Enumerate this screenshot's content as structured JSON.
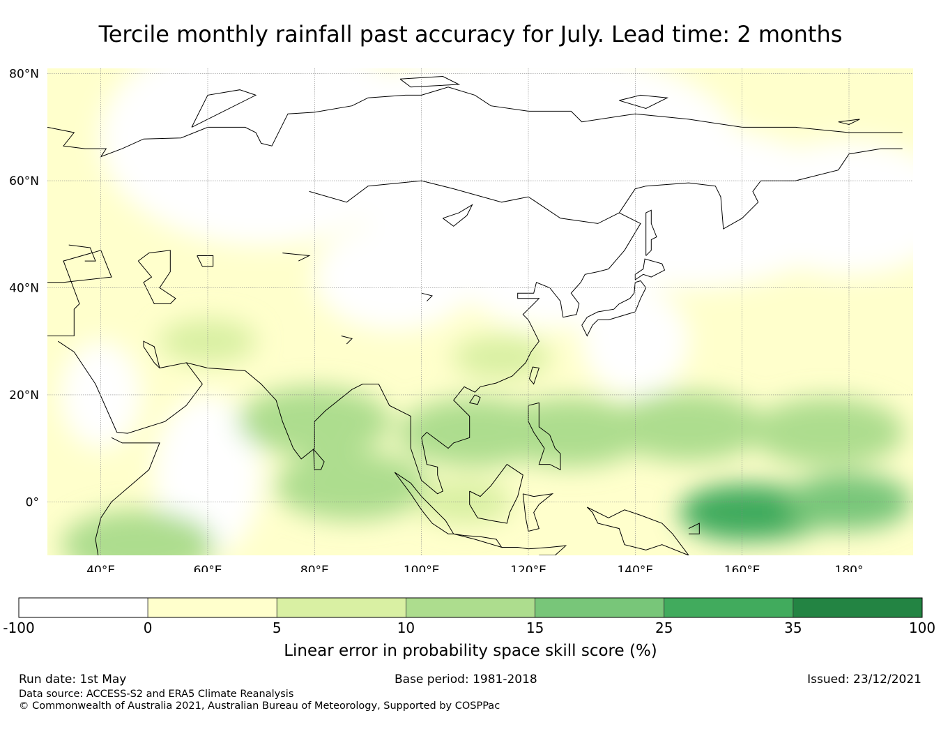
{
  "title": "Tercile monthly rainfall past accuracy for July. Lead time: 2 months",
  "map": {
    "lon_range": [
      30,
      192
    ],
    "lat_range": [
      -10,
      81
    ],
    "lat_ticks": [
      {
        "value": 80,
        "label": "80°N"
      },
      {
        "value": 60,
        "label": "60°N"
      },
      {
        "value": 40,
        "label": "40°N"
      },
      {
        "value": 20,
        "label": "20°N"
      },
      {
        "value": 0,
        "label": "0°"
      }
    ],
    "lon_ticks": [
      {
        "value": 40,
        "label": "40°E"
      },
      {
        "value": 60,
        "label": "60°E"
      },
      {
        "value": 80,
        "label": "80°E"
      },
      {
        "value": 100,
        "label": "100°E"
      },
      {
        "value": 120,
        "label": "120°E"
      },
      {
        "value": 140,
        "label": "140°E"
      },
      {
        "value": 160,
        "label": "160°E"
      },
      {
        "value": 180,
        "label": "180°"
      }
    ],
    "high_skill_regions": [
      {
        "lon": 80,
        "lat": 15,
        "level": 3
      },
      {
        "lon": 87,
        "lat": 3,
        "level": 3
      },
      {
        "lon": 110,
        "lat": 13,
        "level": 3
      },
      {
        "lon": 128,
        "lat": 13,
        "level": 3
      },
      {
        "lon": 150,
        "lat": 14,
        "level": 3
      },
      {
        "lon": 176,
        "lat": 13,
        "level": 3
      },
      {
        "lon": 165,
        "lat": -2,
        "level": 4
      },
      {
        "lon": 160,
        "lat": -2,
        "level": 5
      },
      {
        "lon": 180,
        "lat": 0,
        "level": 4
      },
      {
        "lon": 47,
        "lat": -8,
        "level": 3
      },
      {
        "lon": 108,
        "lat": 0,
        "level": 2
      },
      {
        "lon": 115,
        "lat": 27,
        "level": 2
      },
      {
        "lon": 60,
        "lat": 30,
        "level": 2
      }
    ]
  },
  "colorbar": {
    "bounds": [
      -100,
      0,
      5,
      10,
      15,
      25,
      35,
      100
    ],
    "labels": [
      "-100",
      "0",
      "5",
      "10",
      "15",
      "25",
      "35",
      "100"
    ],
    "colors": [
      "#ffffff",
      "#ffffcc",
      "#d9f0a3",
      "#addd8e",
      "#78c679",
      "#41ab5d",
      "#238443"
    ],
    "label": "Linear error in probability space skill score (%)"
  },
  "footer": {
    "run_date": "Run date: 1st May",
    "base_period": "Base period: 1981-2018",
    "issued": "Issued: 23/12/2021",
    "data_source": "Data source: ACCESS-S2 and ERA5 Climate Reanalysis",
    "copyright": "© Commonwealth of Australia 2021, Australian Bureau of Meteorology, Supported by COSPPac"
  }
}
